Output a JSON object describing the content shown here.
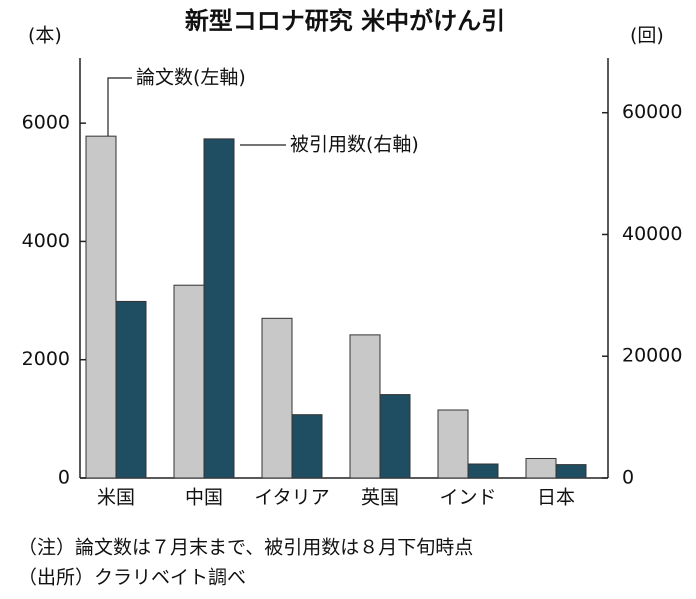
{
  "chart_data": {
    "type": "bar",
    "title": "新型コロナ研究 米中がけん引",
    "y_unit": "(本)",
    "y2_unit": "(回)",
    "categories": [
      "米国",
      "中国",
      "イタリア",
      "英国",
      "インド",
      "日本"
    ],
    "series": [
      {
        "name": "論文数(左軸)",
        "color": "#c8c8c8",
        "values": [
          5780,
          3260,
          2700,
          2420,
          1150,
          330
        ]
      },
      {
        "name": "被引用数(右軸)",
        "color": "#1f4d62",
        "axis": "y2",
        "values": [
          29000,
          55700,
          10400,
          13700,
          2300,
          2200
        ]
      }
    ],
    "ylim": [
      0,
      7000
    ],
    "yticks": [
      0,
      2000,
      4000,
      6000
    ],
    "y2lim": [
      0,
      68000
    ],
    "y2ticks": [
      0,
      20000,
      40000,
      60000
    ],
    "notes": [
      "（注）論文数は７月末まで、被引用数は８月下旬時点",
      "（出所）クラリベイト調べ"
    ]
  }
}
